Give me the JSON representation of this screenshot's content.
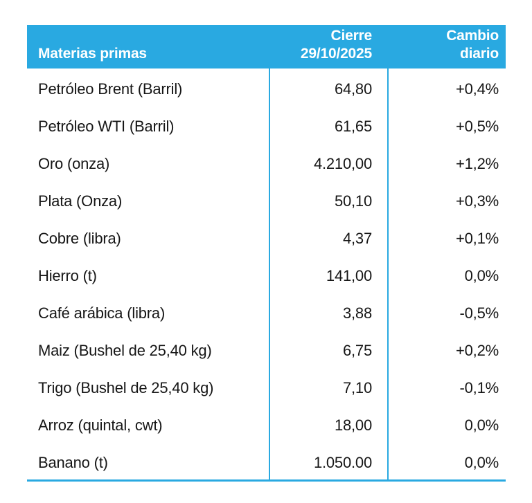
{
  "chart_data": {
    "type": "table",
    "title": "Materias primas",
    "columns": [
      "Materias primas",
      "Cierre 29/10/2025",
      "Cambio diario"
    ],
    "rows": [
      [
        "Petróleo Brent (Barril)",
        "64,80",
        "+0,4%"
      ],
      [
        "Petróleo WTI (Barril)",
        "61,65",
        "+0,5%"
      ],
      [
        "Oro (onza)",
        "4.210,00",
        "+1,2%"
      ],
      [
        "Plata (Onza)",
        "50,10",
        "+0,3%"
      ],
      [
        "Cobre (libra)",
        "4,37",
        "+0,1%"
      ],
      [
        "Hierro (t)",
        "141,00",
        "0,0%"
      ],
      [
        "Café arábica (libra)",
        "3,88",
        "-0,5%"
      ],
      [
        "Maiz (Bushel de 25,40 kg)",
        "6,75",
        "+0,2%"
      ],
      [
        "Trigo (Bushel de 25,40 kg)",
        "7,10",
        "-0,1%"
      ],
      [
        "Arroz (quintal, cwt)",
        "18,00",
        "0,0%"
      ],
      [
        "Banano (t)",
        "1.050.00",
        "0,0%"
      ]
    ]
  },
  "table": {
    "header": {
      "col1": "Materias primas",
      "col2_line1": "Cierre",
      "col2_line2": "29/10/2025",
      "col3_line1": "Cambio",
      "col3_line2": "diario"
    },
    "rows": [
      {
        "name": "Petróleo Brent (Barril)",
        "close": "64,80",
        "change": "+0,4%"
      },
      {
        "name": "Petróleo WTI (Barril)",
        "close": "61,65",
        "change": "+0,5%"
      },
      {
        "name": "Oro (onza)",
        "close": "4.210,00",
        "change": "+1,2%"
      },
      {
        "name": "Plata (Onza)",
        "close": "50,10",
        "change": "+0,3%"
      },
      {
        "name": "Cobre (libra)",
        "close": "4,37",
        "change": "+0,1%"
      },
      {
        "name": "Hierro (t)",
        "close": "141,00",
        "change": "0,0%"
      },
      {
        "name": "Café arábica (libra)",
        "close": "3,88",
        "change": "-0,5%"
      },
      {
        "name": "Maiz (Bushel de 25,40 kg)",
        "close": "6,75",
        "change": "+0,2%"
      },
      {
        "name": "Trigo (Bushel de 25,40 kg)",
        "close": "7,10",
        "change": "-0,1%"
      },
      {
        "name": "Arroz (quintal, cwt)",
        "close": "18,00",
        "change": "0,0%"
      },
      {
        "name": "Banano (t)",
        "close": "1.050.00",
        "change": "0,0%"
      }
    ],
    "colors": {
      "header_bg": "#29a9e1",
      "rule": "#29a9e1",
      "text": "#161616",
      "header_text": "#ffffff"
    }
  }
}
